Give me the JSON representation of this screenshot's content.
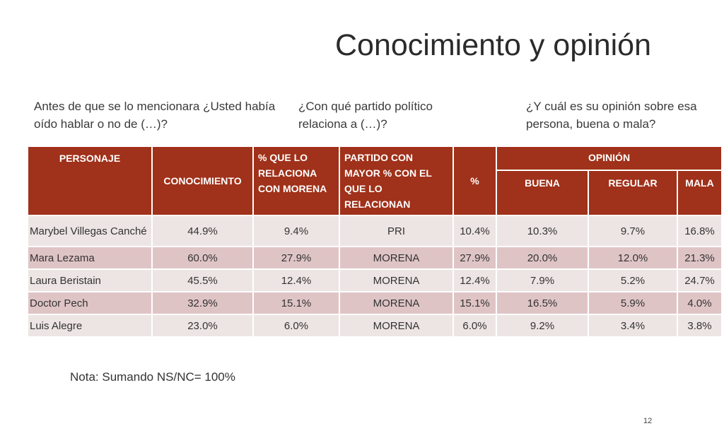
{
  "title": "Conocimiento y opinión",
  "questions": {
    "q1": "Antes de que se lo mencionara ¿Usted había oído hablar o no de (…)?",
    "q2": "¿Con qué partido político relaciona a (…)?",
    "q3": "¿Y cuál es su opinión sobre esa persona, buena o mala?"
  },
  "table": {
    "headers": {
      "personaje": "PERSONAJE",
      "conocimiento": "CONOCIMIENTO",
      "relaciona_morena": "% QUE LO RELACIONA CON MORENA",
      "partido": "PARTIDO CON MAYOR % CON EL QUE LO RELACIONAN",
      "pct": "%",
      "opinion": "OPINIÓN",
      "buena": "BUENA",
      "regular": "REGULAR",
      "mala": "MALA"
    },
    "rows": [
      {
        "name": "Marybel Villegas Canché",
        "conocimiento": "44.9%",
        "morena": "9.4%",
        "partido": "PRI",
        "pct": "10.4%",
        "buena": "10.3%",
        "regular": "9.7%",
        "mala": "16.8%"
      },
      {
        "name": "Mara Lezama",
        "conocimiento": "60.0%",
        "morena": "27.9%",
        "partido": "MORENA",
        "pct": "27.9%",
        "buena": "20.0%",
        "regular": "12.0%",
        "mala": "21.3%"
      },
      {
        "name": "Laura Beristain",
        "conocimiento": "45.5%",
        "morena": "12.4%",
        "partido": "MORENA",
        "pct": "12.4%",
        "buena": "7.9%",
        "regular": "5.2%",
        "mala": "24.7%"
      },
      {
        "name": "Doctor Pech",
        "conocimiento": "32.9%",
        "morena": "15.1%",
        "partido": "MORENA",
        "pct": "15.1%",
        "buena": "16.5%",
        "regular": "5.9%",
        "mala": "4.0%"
      },
      {
        "name": "Luis Alegre",
        "conocimiento": "23.0%",
        "morena": "6.0%",
        "partido": "MORENA",
        "pct": "6.0%",
        "buena": "9.2%",
        "regular": "3.4%",
        "mala": "3.8%"
      }
    ]
  },
  "note": "Nota: Sumando NS/NC= 100%",
  "page_number": "12",
  "colors": {
    "header_bg": "#a0311a",
    "row_light": "#ede5e4",
    "row_dark": "#dfc4c6"
  }
}
